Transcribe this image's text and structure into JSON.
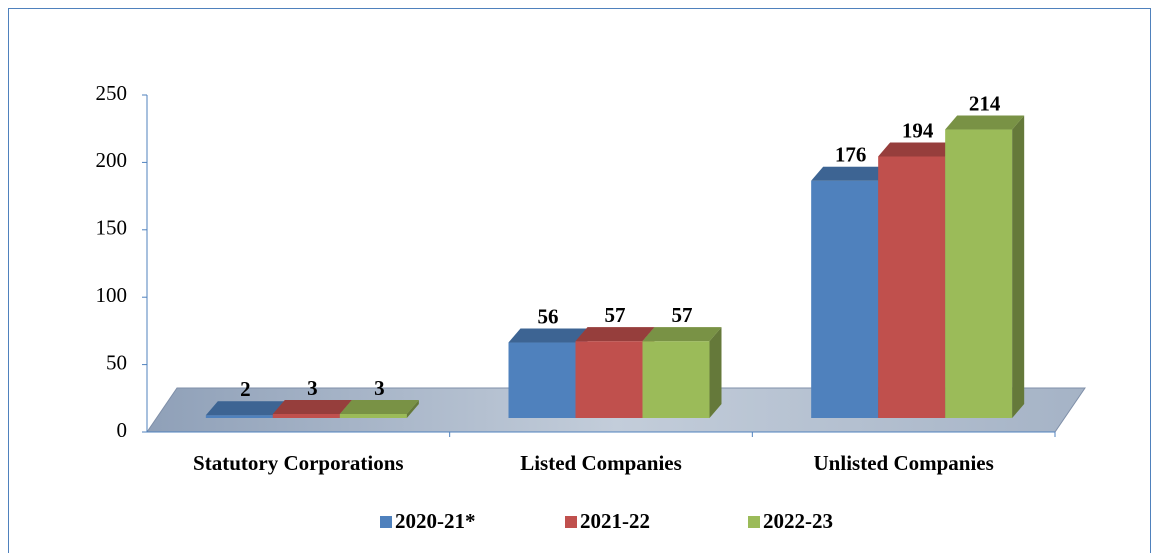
{
  "chart_data": {
    "type": "bar3d",
    "categories": [
      "Statutory Corporations",
      "Listed Companies",
      "Unlisted Companies"
    ],
    "series": [
      {
        "name": "2020-21*",
        "color": "#4f81bd",
        "values": [
          2,
          56,
          176
        ]
      },
      {
        "name": "2021-22",
        "color": "#c0504d",
        "values": [
          3,
          57,
          194
        ]
      },
      {
        "name": "2022-23",
        "color": "#9bbb59",
        "values": [
          3,
          57,
          214
        ]
      }
    ],
    "ylim": [
      0,
      250
    ],
    "yticks": [
      0,
      50,
      100,
      150,
      200,
      250
    ],
    "legend": "bottom"
  }
}
